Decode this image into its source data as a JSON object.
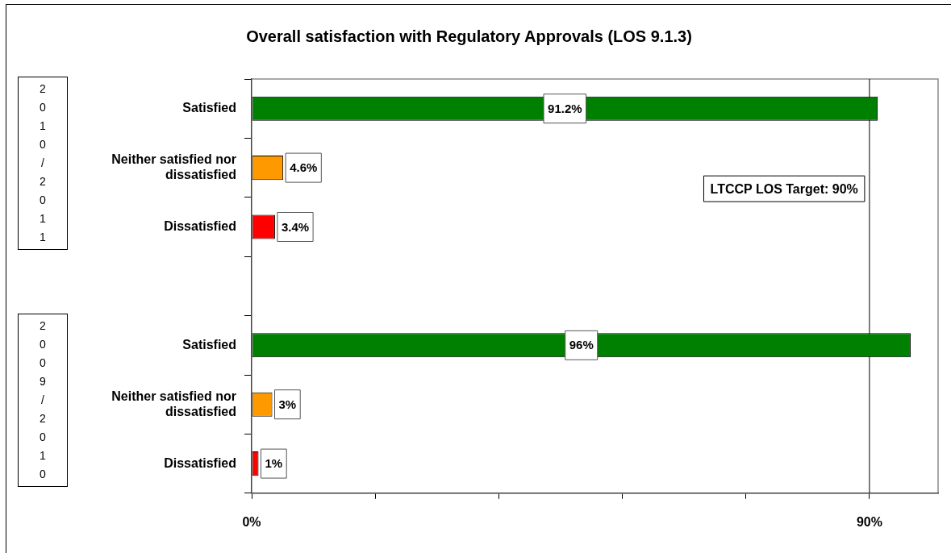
{
  "chart_data": {
    "type": "bar",
    "orientation": "horizontal",
    "title": "Overall satisfaction with Regulatory Approvals (LOS 9.1.3)",
    "categories": [
      "Satisfied",
      "Neither satisfied nor dissatisfied",
      "Dissatisfied",
      null,
      "Satisfied",
      "Neither satisfied nor dissatisfied",
      "Dissatisfied"
    ],
    "values": [
      91.2,
      4.6,
      3.4,
      null,
      96,
      3,
      1
    ],
    "colors": [
      "#008000",
      "#ff9900",
      "#ff0000",
      null,
      "#008000",
      "#ff9900",
      "#ff0000"
    ],
    "value_labels": [
      "91.2%",
      "4.6%",
      "3.4%",
      null,
      "96%",
      "3%",
      "1%"
    ],
    "xlim": [
      0,
      100
    ],
    "xticks": [
      {
        "value": 0,
        "label": "0%"
      },
      {
        "value": 18,
        "label": null
      },
      {
        "value": 36,
        "label": null
      },
      {
        "value": 54,
        "label": null
      },
      {
        "value": 72,
        "label": null
      },
      {
        "value": 90,
        "label": "90%"
      }
    ],
    "ref_lines": [
      {
        "axis": "x",
        "value": 90,
        "label": "LTCCP LOS Target: 90%"
      }
    ],
    "annotations": [
      "2010/2011",
      "2009/2010"
    ]
  }
}
